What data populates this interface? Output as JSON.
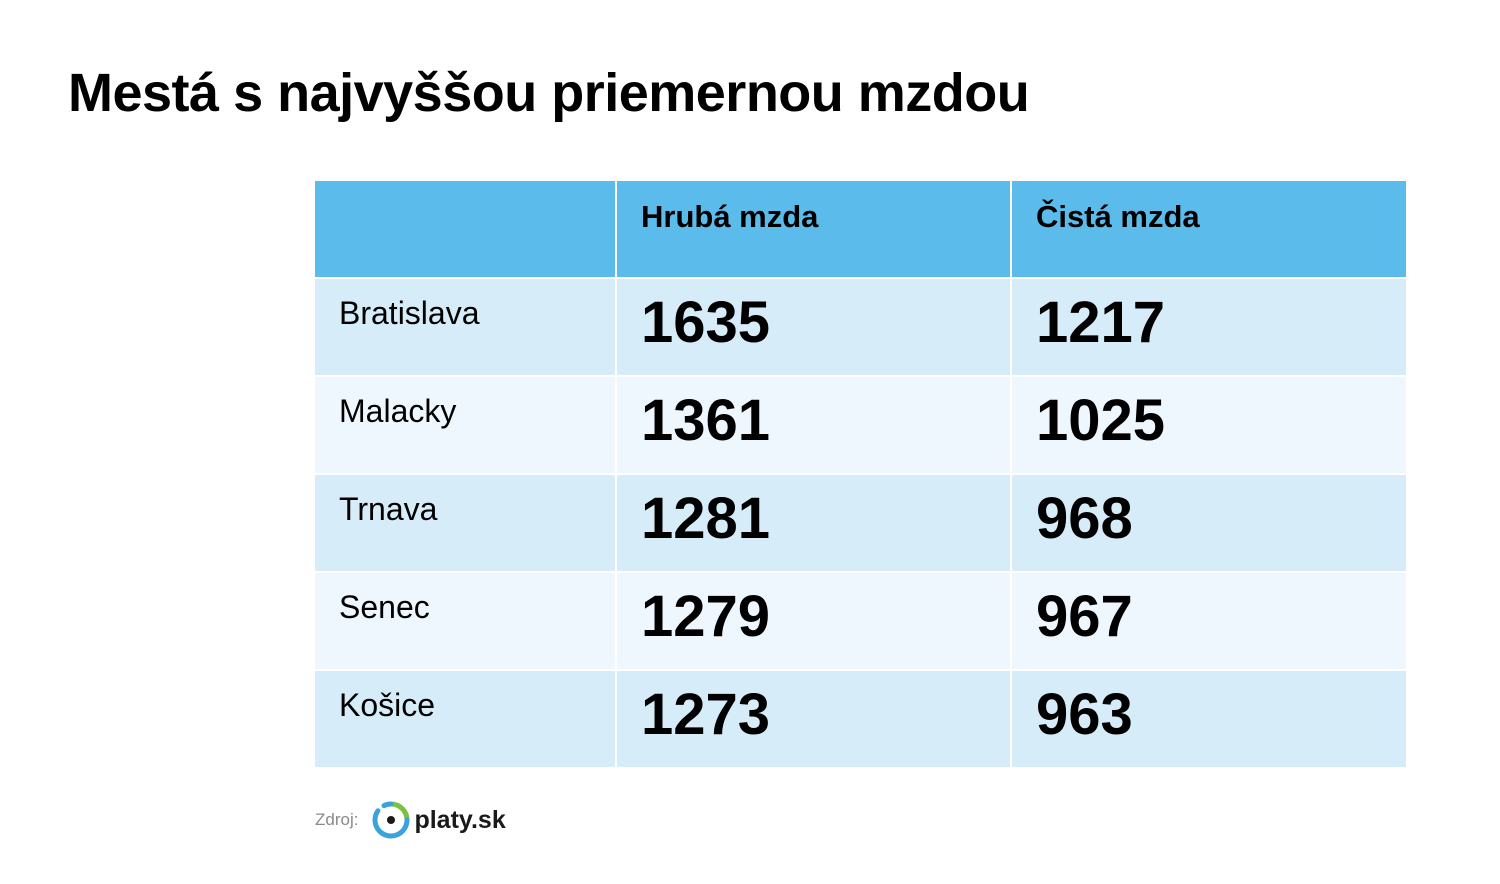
{
  "header": {
    "title": "Mestá s najvyššou priemernou mzdou"
  },
  "table": {
    "columns": [
      "Hrubá mzda",
      "Čistá mzda"
    ],
    "rows": [
      [
        "Bratislava",
        1635,
        1217
      ],
      [
        "Malacky",
        1361,
        1025
      ],
      [
        "Trnava",
        1281,
        968
      ],
      [
        "Senec",
        1279,
        967
      ],
      [
        "Košice",
        1273,
        963
      ]
    ]
  },
  "footer": {
    "source_label": "Zdroj:",
    "logo": "platy.sk"
  }
}
